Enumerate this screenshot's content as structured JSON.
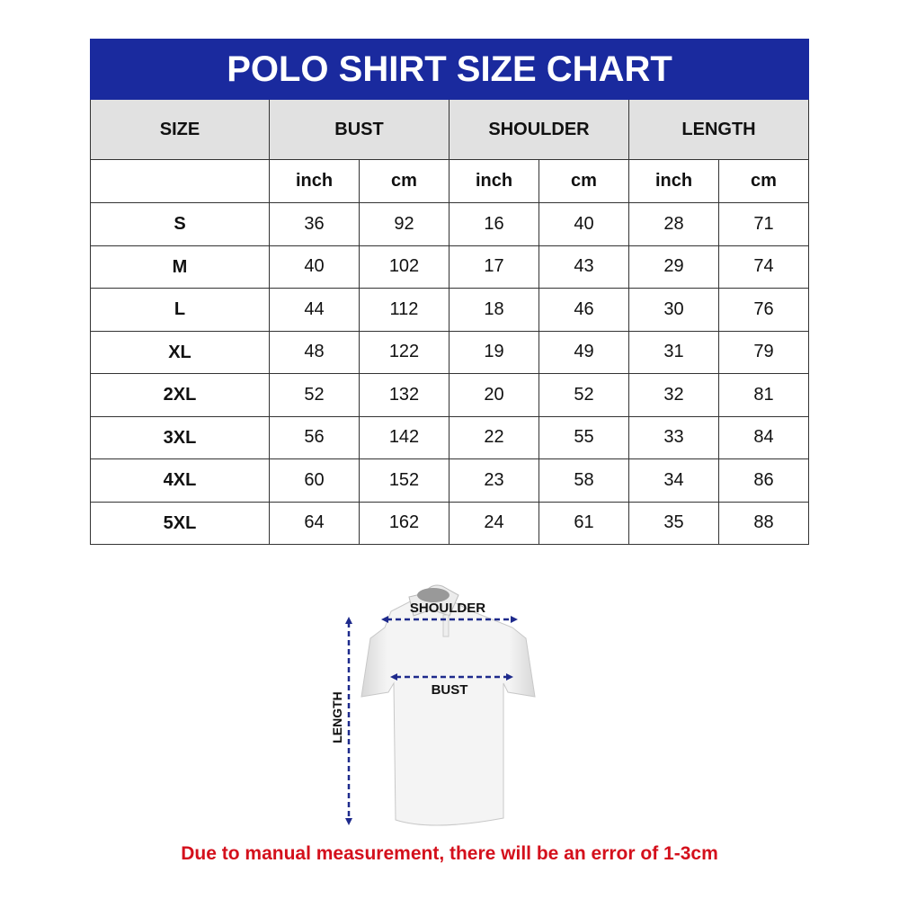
{
  "title": "POLO SHIRT SIZE CHART",
  "headers": [
    "SIZE",
    "BUST",
    "SHOULDER",
    "LENGTH"
  ],
  "units": [
    "inch",
    "cm",
    "inch",
    "cm",
    "inch",
    "cm"
  ],
  "rows": [
    [
      "S",
      "36",
      "92",
      "16",
      "40",
      "28",
      "71"
    ],
    [
      "M",
      "40",
      "102",
      "17",
      "43",
      "29",
      "74"
    ],
    [
      "L",
      "44",
      "112",
      "18",
      "46",
      "30",
      "76"
    ],
    [
      "XL",
      "48",
      "122",
      "19",
      "49",
      "31",
      "79"
    ],
    [
      "2XL",
      "52",
      "132",
      "20",
      "52",
      "32",
      "81"
    ],
    [
      "3XL",
      "56",
      "142",
      "22",
      "55",
      "33",
      "84"
    ],
    [
      "4XL",
      "60",
      "152",
      "23",
      "58",
      "34",
      "86"
    ],
    [
      "5XL",
      "64",
      "162",
      "24",
      "61",
      "35",
      "88"
    ]
  ],
  "diagram": {
    "shoulder": "SHOULDER",
    "bust": "BUST",
    "length": "LENGTH"
  },
  "note": "Due to manual measurement, there will be an error of 1-3cm",
  "colors": {
    "title_bg": "#1a2a9e",
    "header_bg": "#e1e1e1",
    "note": "#d4101c",
    "arrow": "#1e2a8c"
  }
}
